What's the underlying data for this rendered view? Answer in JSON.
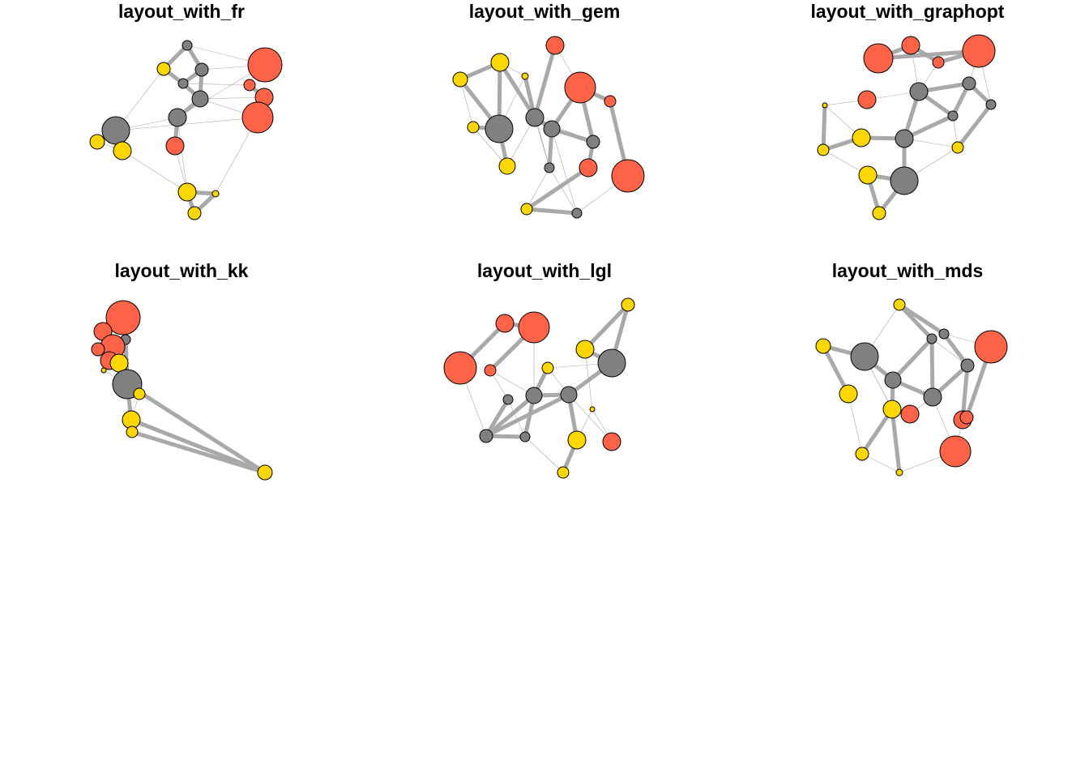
{
  "titles": {
    "fr": "layout_with_fr",
    "gem": "layout_with_gem",
    "graphopt": "layout_with_graphopt",
    "kk": "layout_with_kk",
    "lgl": "layout_with_lgl",
    "mds": "layout_with_mds"
  },
  "colors": {
    "gray": "#808080",
    "orange": "#FF6347",
    "yellow": "#FFD700",
    "edge": "#A9A9A9",
    "stroke": "#000000"
  }
}
